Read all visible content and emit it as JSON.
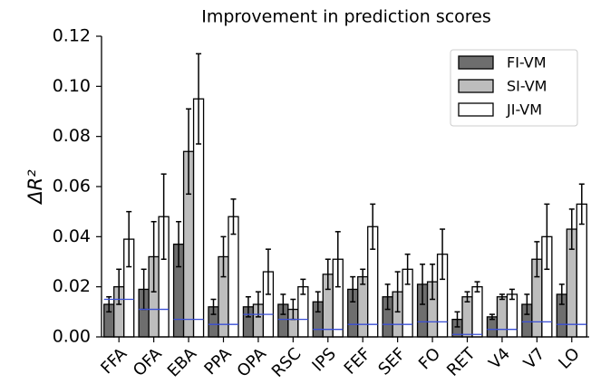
{
  "chart_data": {
    "type": "bar",
    "title": "Improvement in prediction scores",
    "ylabel": "ΔR²",
    "categories": [
      "FFA",
      "OFA",
      "EBA",
      "PPA",
      "OPA",
      "RSC",
      "IPS",
      "FEF",
      "SEF",
      "FO",
      "RET",
      "V4",
      "V7",
      "LO"
    ],
    "series": [
      {
        "name": "FI-VM",
        "color": "#6e6e6e",
        "values": [
          0.013,
          0.019,
          0.037,
          0.012,
          0.012,
          0.013,
          0.014,
          0.019,
          0.016,
          0.021,
          0.007,
          0.008,
          0.013,
          0.017
        ],
        "errors": [
          0.003,
          0.008,
          0.009,
          0.003,
          0.004,
          0.004,
          0.004,
          0.005,
          0.005,
          0.008,
          0.003,
          0.001,
          0.004,
          0.004
        ]
      },
      {
        "name": "SI-VM",
        "color": "#bdbdbd",
        "values": [
          0.02,
          0.032,
          0.074,
          0.032,
          0.013,
          0.011,
          0.025,
          0.024,
          0.018,
          0.022,
          0.016,
          0.016,
          0.031,
          0.043
        ],
        "errors": [
          0.007,
          0.014,
          0.017,
          0.008,
          0.005,
          0.004,
          0.006,
          0.003,
          0.008,
          0.007,
          0.002,
          0.001,
          0.007,
          0.008
        ]
      },
      {
        "name": "JI-VM",
        "color": "#ffffff",
        "values": [
          0.039,
          0.048,
          0.095,
          0.048,
          0.026,
          0.02,
          0.031,
          0.044,
          0.027,
          0.033,
          0.02,
          0.017,
          0.04,
          0.053
        ],
        "errors": [
          0.011,
          0.017,
          0.018,
          0.007,
          0.009,
          0.003,
          0.011,
          0.009,
          0.006,
          0.01,
          0.002,
          0.002,
          0.013,
          0.008
        ]
      }
    ],
    "reference": {
      "color": "#3a4fd6",
      "values": [
        0.015,
        0.011,
        0.007,
        0.005,
        0.009,
        0.007,
        0.003,
        0.005,
        0.005,
        0.006,
        0.001,
        0.003,
        0.006,
        0.005
      ]
    },
    "ylim": [
      0,
      0.12
    ],
    "yticks": [
      {
        "value": 0,
        "label": "0.00"
      },
      {
        "value": 0.02,
        "label": "0.02"
      },
      {
        "value": 0.04,
        "label": "0.04"
      },
      {
        "value": 0.06,
        "label": "0.06"
      },
      {
        "value": 0.08,
        "label": "0.08"
      },
      {
        "value": 0.1,
        "label": "0.10"
      },
      {
        "value": 0.12,
        "label": "0.12"
      }
    ],
    "legend": "upper right"
  }
}
